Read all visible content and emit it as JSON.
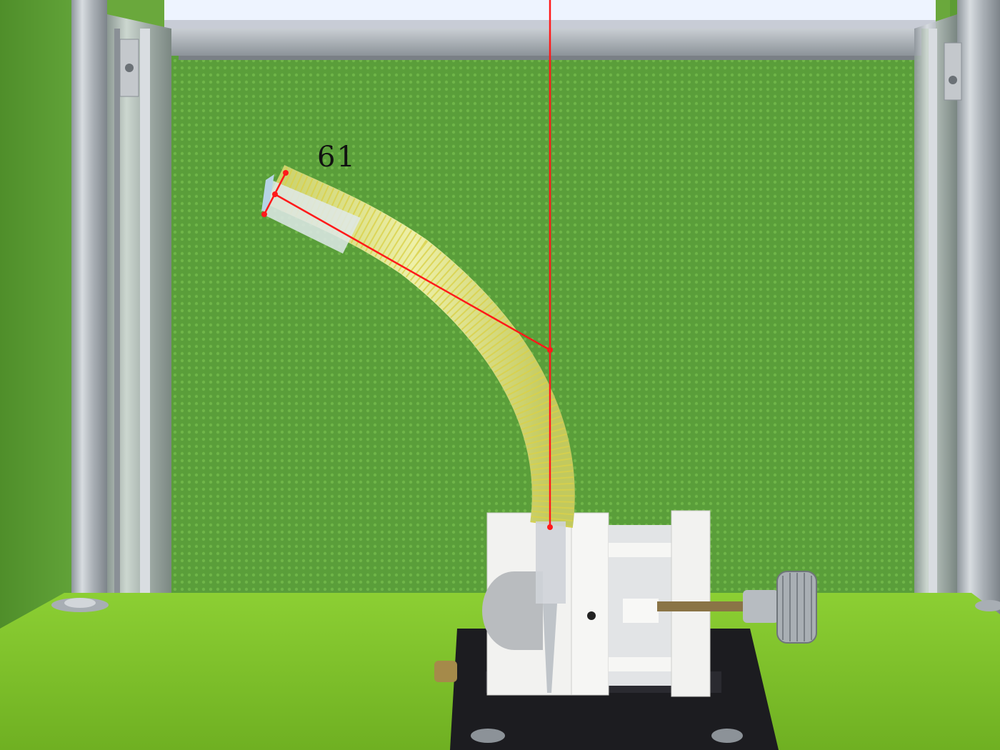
{
  "annotation": {
    "angle_label": "61",
    "line_color": "#ff1a1a",
    "marker_color": "#ff1a1a"
  },
  "scene": {
    "backdrop_color": "#5fa83e",
    "floor_color": "#7cc42a",
    "frame_color": "#b8bec4",
    "light_color": "#f4f8ff",
    "tube_color": "#dfe48a",
    "clamp_color": "#f4f4f2",
    "base_color": "#1a1a1e"
  }
}
